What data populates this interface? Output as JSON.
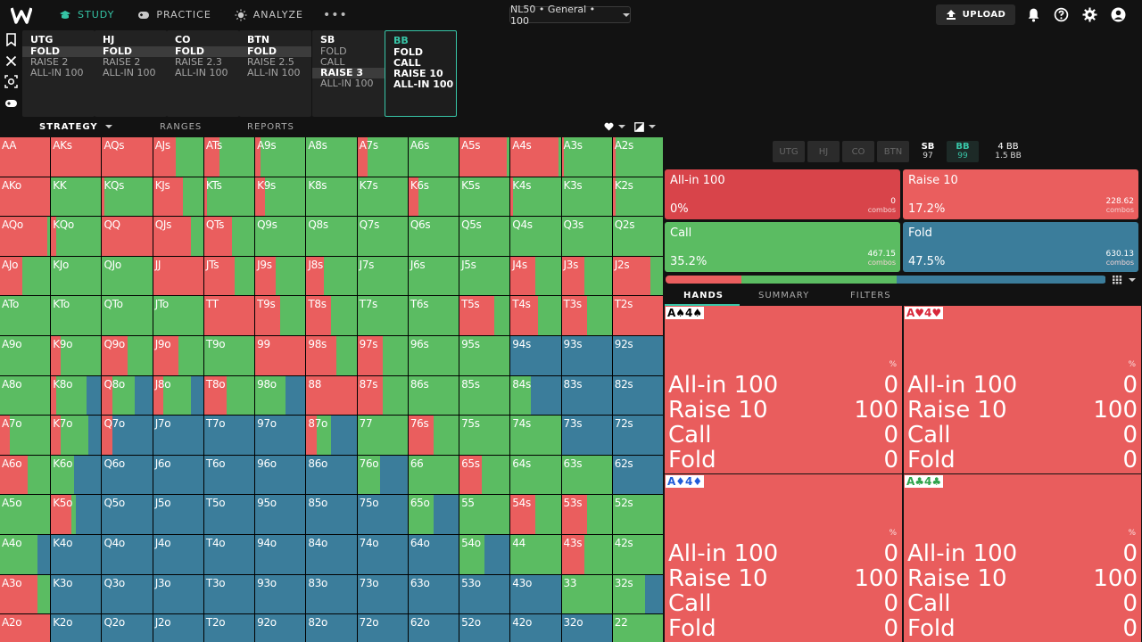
{
  "nav": {
    "study": "STUDY",
    "practice": "PRACTICE",
    "analyze": "ANALYZE",
    "more": "•••"
  },
  "game_select": "NL50 • General • 100",
  "upload": "UPLOAD",
  "positions": [
    {
      "name": "UTG",
      "actions": [
        "FOLD",
        "RAISE 2",
        "ALL-IN 100"
      ]
    },
    {
      "name": "HJ",
      "actions": [
        "FOLD",
        "RAISE 2",
        "ALL-IN 100"
      ]
    },
    {
      "name": "CO",
      "actions": [
        "FOLD",
        "RAISE 2.3",
        "ALL-IN 100"
      ]
    },
    {
      "name": "BTN",
      "actions": [
        "FOLD",
        "RAISE 2.5",
        "ALL-IN 100"
      ]
    },
    {
      "name": "SB",
      "actions": [
        "FOLD",
        "CALL",
        "RAISE 3",
        "ALL-IN 100"
      ]
    },
    {
      "name": "BB",
      "actions": [
        "FOLD",
        "CALL",
        "RAISE 10",
        "ALL-IN 100"
      ]
    }
  ],
  "subtabs": {
    "strategy": "STRATEGY",
    "ranges": "RANGES",
    "reports": "REPORTS"
  },
  "colors": {
    "raise": "#ea5e5e",
    "allin": "#d8444a",
    "call": "#5bbc62",
    "fold": "#3b7d9b"
  },
  "grid": [
    [
      "AA",
      "AKs",
      "AQs",
      "AJs",
      "ATs",
      "A9s",
      "A8s",
      "A7s",
      "A6s",
      "A5s",
      "A4s",
      "A3s",
      "A2s"
    ],
    [
      "AKo",
      "KK",
      "KQs",
      "KJs",
      "KTs",
      "K9s",
      "K8s",
      "K7s",
      "K6s",
      "K5s",
      "K4s",
      "K3s",
      "K2s"
    ],
    [
      "AQo",
      "KQo",
      "QQ",
      "QJs",
      "QTs",
      "Q9s",
      "Q8s",
      "Q7s",
      "Q6s",
      "Q5s",
      "Q4s",
      "Q3s",
      "Q2s"
    ],
    [
      "AJo",
      "KJo",
      "QJo",
      "JJ",
      "JTs",
      "J9s",
      "J8s",
      "J7s",
      "J6s",
      "J5s",
      "J4s",
      "J3s",
      "J2s"
    ],
    [
      "ATo",
      "KTo",
      "QTo",
      "JTo",
      "TT",
      "T9s",
      "T8s",
      "T7s",
      "T6s",
      "T5s",
      "T4s",
      "T3s",
      "T2s"
    ],
    [
      "A9o",
      "K9o",
      "Q9o",
      "J9o",
      "T9o",
      "99",
      "98s",
      "97s",
      "96s",
      "95s",
      "94s",
      "93s",
      "92s"
    ],
    [
      "A8o",
      "K8o",
      "Q8o",
      "J8o",
      "T8o",
      "98o",
      "88",
      "87s",
      "86s",
      "85s",
      "84s",
      "83s",
      "82s"
    ],
    [
      "A7o",
      "K7o",
      "Q7o",
      "J7o",
      "T7o",
      "97o",
      "87o",
      "77",
      "76s",
      "75s",
      "74s",
      "73s",
      "72s"
    ],
    [
      "A6o",
      "K6o",
      "Q6o",
      "J6o",
      "T6o",
      "96o",
      "86o",
      "76o",
      "66",
      "65s",
      "64s",
      "63s",
      "62s"
    ],
    [
      "A5o",
      "K5o",
      "Q5o",
      "J5o",
      "T5o",
      "95o",
      "85o",
      "75o",
      "65o",
      "55",
      "54s",
      "53s",
      "52s"
    ],
    [
      "A4o",
      "K4o",
      "Q4o",
      "J4o",
      "T4o",
      "94o",
      "84o",
      "74o",
      "64o",
      "54o",
      "44",
      "43s",
      "42s"
    ],
    [
      "A3o",
      "K3o",
      "Q3o",
      "J3o",
      "T3o",
      "93o",
      "83o",
      "73o",
      "63o",
      "53o",
      "43o",
      "33",
      "32s"
    ],
    [
      "A2o",
      "K2o",
      "Q2o",
      "J2o",
      "T2o",
      "92o",
      "82o",
      "72o",
      "62o",
      "52o",
      "42o",
      "32o",
      "22"
    ]
  ],
  "freq": [
    [
      [
        1,
        0,
        0
      ],
      [
        1,
        0,
        0
      ],
      [
        1,
        0,
        0
      ],
      [
        0.45,
        0.55,
        0
      ],
      [
        0.3,
        0.7,
        0
      ],
      [
        0.1,
        0.9,
        0
      ],
      [
        0,
        1,
        0
      ],
      [
        0.2,
        0.8,
        0
      ],
      [
        0,
        1,
        0
      ],
      [
        0.95,
        0.05,
        0
      ],
      [
        0.95,
        0.05,
        0
      ],
      [
        0.05,
        0.95,
        0
      ],
      [
        0.05,
        0.95,
        0
      ]
    ],
    [
      [
        1,
        0,
        0
      ],
      [
        0,
        1,
        0
      ],
      [
        0.05,
        0.95,
        0
      ],
      [
        0.6,
        0.4,
        0
      ],
      [
        0.05,
        0.95,
        0
      ],
      [
        0.2,
        0.8,
        0
      ],
      [
        0,
        1,
        0
      ],
      [
        0,
        1,
        0
      ],
      [
        0.2,
        0.8,
        0
      ],
      [
        0,
        1,
        0
      ],
      [
        0.05,
        0.95,
        0
      ],
      [
        0,
        1,
        0
      ],
      [
        0.05,
        0.95,
        0
      ]
    ],
    [
      [
        0.95,
        0.05,
        0
      ],
      [
        0.1,
        0.9,
        0
      ],
      [
        1,
        0,
        0
      ],
      [
        0.75,
        0.25,
        0
      ],
      [
        0.55,
        0.45,
        0
      ],
      [
        0,
        1,
        0
      ],
      [
        0,
        1,
        0
      ],
      [
        0,
        1,
        0
      ],
      [
        0,
        1,
        0
      ],
      [
        0,
        1,
        0
      ],
      [
        0,
        1,
        0
      ],
      [
        0,
        1,
        0
      ],
      [
        0,
        1,
        0
      ]
    ],
    [
      [
        0.45,
        0.55,
        0
      ],
      [
        0,
        1,
        0
      ],
      [
        0,
        1,
        0
      ],
      [
        1,
        0,
        0
      ],
      [
        0.6,
        0.4,
        0
      ],
      [
        0.4,
        0.6,
        0
      ],
      [
        0.35,
        0.65,
        0
      ],
      [
        0,
        1,
        0
      ],
      [
        0,
        1,
        0
      ],
      [
        0,
        1,
        0
      ],
      [
        0.5,
        0.5,
        0
      ],
      [
        0.45,
        0.55,
        0
      ],
      [
        0.75,
        0.25,
        0
      ]
    ],
    [
      [
        0,
        1,
        0
      ],
      [
        0,
        1,
        0
      ],
      [
        0,
        1,
        0
      ],
      [
        0,
        1,
        0
      ],
      [
        1,
        0,
        0
      ],
      [
        0.5,
        0.5,
        0
      ],
      [
        0.5,
        0.5,
        0
      ],
      [
        0,
        1,
        0
      ],
      [
        0,
        1,
        0
      ],
      [
        0.7,
        0.3,
        0
      ],
      [
        0.55,
        0.45,
        0
      ],
      [
        0.5,
        0.5,
        0
      ],
      [
        1,
        0,
        0
      ]
    ],
    [
      [
        0,
        1,
        0
      ],
      [
        0.2,
        0.8,
        0
      ],
      [
        0.5,
        0.5,
        0
      ],
      [
        0.5,
        0.5,
        0
      ],
      [
        0,
        1,
        0
      ],
      [
        1,
        0,
        0
      ],
      [
        0.6,
        0.4,
        0
      ],
      [
        0.5,
        0.5,
        0
      ],
      [
        0,
        1,
        0
      ],
      [
        0,
        1,
        0
      ],
      [
        0,
        0,
        1
      ],
      [
        0,
        0,
        1
      ],
      [
        0,
        0,
        1
      ]
    ],
    [
      [
        0,
        1,
        0
      ],
      [
        0.1,
        0.6,
        0.3
      ],
      [
        0.2,
        0.45,
        0.35
      ],
      [
        0.2,
        0.55,
        0.25
      ],
      [
        0.45,
        0.55,
        0
      ],
      [
        0,
        0.6,
        0.4
      ],
      [
        1,
        0,
        0
      ],
      [
        0.5,
        0.5,
        0
      ],
      [
        0,
        1,
        0
      ],
      [
        0,
        1,
        0
      ],
      [
        0,
        0.4,
        0.6
      ],
      [
        0,
        0,
        1
      ],
      [
        0,
        0,
        1
      ]
    ],
    [
      [
        0.2,
        0.8,
        0
      ],
      [
        0.2,
        0.55,
        0.25
      ],
      [
        0.2,
        0,
        0.8
      ],
      [
        0,
        0,
        1
      ],
      [
        0,
        0,
        1
      ],
      [
        0,
        0,
        1
      ],
      [
        0.2,
        0.3,
        0.5
      ],
      [
        0,
        1,
        0
      ],
      [
        0.5,
        0.5,
        0
      ],
      [
        0,
        1,
        0
      ],
      [
        0,
        1,
        0
      ],
      [
        0,
        0,
        1
      ],
      [
        0,
        0,
        1
      ]
    ],
    [
      [
        0.55,
        0.45,
        0
      ],
      [
        0,
        0.45,
        0.55
      ],
      [
        0,
        0,
        1
      ],
      [
        0,
        0,
        1
      ],
      [
        0,
        0,
        1
      ],
      [
        0,
        0,
        1
      ],
      [
        0,
        0,
        1
      ],
      [
        0,
        0.45,
        0.55
      ],
      [
        0,
        1,
        0
      ],
      [
        0.45,
        0.55,
        0
      ],
      [
        0,
        1,
        0
      ],
      [
        0,
        1,
        0
      ],
      [
        0,
        0,
        1
      ]
    ],
    [
      [
        0,
        1,
        0
      ],
      [
        0.4,
        0.1,
        0.5
      ],
      [
        0,
        0,
        1
      ],
      [
        0,
        0,
        1
      ],
      [
        0,
        0,
        1
      ],
      [
        0,
        0,
        1
      ],
      [
        0,
        0,
        1
      ],
      [
        0,
        0,
        1
      ],
      [
        0,
        0.5,
        0.5
      ],
      [
        0,
        1,
        0
      ],
      [
        0.5,
        0.5,
        0
      ],
      [
        0.5,
        0.5,
        0
      ],
      [
        0,
        1,
        0
      ]
    ],
    [
      [
        0,
        0.75,
        0.25
      ],
      [
        0,
        0,
        1
      ],
      [
        0,
        0,
        1
      ],
      [
        0,
        0,
        1
      ],
      [
        0,
        0,
        1
      ],
      [
        0,
        0,
        1
      ],
      [
        0,
        0,
        1
      ],
      [
        0,
        0,
        1
      ],
      [
        0,
        0,
        1
      ],
      [
        0,
        0.5,
        0.5
      ],
      [
        0,
        1,
        0
      ],
      [
        0.45,
        0.55,
        0
      ],
      [
        0,
        1,
        0
      ]
    ],
    [
      [
        0.75,
        0.25,
        0
      ],
      [
        0,
        0,
        1
      ],
      [
        0,
        0,
        1
      ],
      [
        0,
        0,
        1
      ],
      [
        0,
        0,
        1
      ],
      [
        0,
        0,
        1
      ],
      [
        0,
        0,
        1
      ],
      [
        0,
        0,
        1
      ],
      [
        0,
        0,
        1
      ],
      [
        0,
        0,
        1
      ],
      [
        0,
        0,
        1
      ],
      [
        0,
        1,
        0
      ],
      [
        0,
        0.65,
        0.35
      ]
    ],
    [
      [
        1,
        0,
        0
      ],
      [
        0,
        0,
        1
      ],
      [
        0,
        0,
        1
      ],
      [
        0,
        0,
        1
      ],
      [
        0,
        0,
        1
      ],
      [
        0,
        0,
        1
      ],
      [
        0,
        0,
        1
      ],
      [
        0,
        0,
        1
      ],
      [
        0,
        0,
        1
      ],
      [
        0,
        0,
        1
      ],
      [
        0,
        0,
        1
      ],
      [
        0,
        0,
        1
      ],
      [
        0,
        1,
        0
      ]
    ]
  ],
  "seat_tabs": [
    {
      "label": "UTG",
      "sub": ""
    },
    {
      "label": "HJ",
      "sub": ""
    },
    {
      "label": "CO",
      "sub": ""
    },
    {
      "label": "BTN",
      "sub": ""
    },
    {
      "label": "SB",
      "sub": "97"
    },
    {
      "label": "BB",
      "sub": "99"
    },
    {
      "label": "4 BB",
      "sub": "1.5 BB"
    }
  ],
  "actions": [
    {
      "name": "All-in 100",
      "pct": "0%",
      "combos": "0",
      "unit": "combos"
    },
    {
      "name": "Raise 10",
      "pct": "17.2%",
      "combos": "228.62",
      "unit": "combos"
    },
    {
      "name": "Call",
      "pct": "35.2%",
      "combos": "467.15",
      "unit": "combos"
    },
    {
      "name": "Fold",
      "pct": "47.5%",
      "combos": "630.13",
      "unit": "combos"
    }
  ],
  "freq_bar": [
    0,
    17.2,
    35.2,
    47.5
  ],
  "hand_tabs": {
    "hands": "HANDS",
    "summary": "SUMMARY",
    "filters": "FILTERS"
  },
  "hands": [
    {
      "cards": "A♠4♠",
      "suit_color": "#000000",
      "pct_label": "%",
      "rows": [
        [
          "All-in 100",
          "0"
        ],
        [
          "Raise 10",
          "100"
        ],
        [
          "Call",
          "0"
        ],
        [
          "Fold",
          "0"
        ]
      ]
    },
    {
      "cards": "A♥4♥",
      "suit_color": "#d8283a",
      "pct_label": "%",
      "rows": [
        [
          "All-in 100",
          "0"
        ],
        [
          "Raise 10",
          "100"
        ],
        [
          "Call",
          "0"
        ],
        [
          "Fold",
          "0"
        ]
      ]
    },
    {
      "cards": "A♦4♦",
      "suit_color": "#1f5bd8",
      "pct_label": "%",
      "rows": [
        [
          "All-in 100",
          "0"
        ],
        [
          "Raise 10",
          "100"
        ],
        [
          "Call",
          "0"
        ],
        [
          "Fold",
          "0"
        ]
      ]
    },
    {
      "cards": "A♣4♣",
      "suit_color": "#2ea34a",
      "pct_label": "%",
      "rows": [
        [
          "All-in 100",
          "0"
        ],
        [
          "Raise 10",
          "100"
        ],
        [
          "Call",
          "0"
        ],
        [
          "Fold",
          "0"
        ]
      ]
    }
  ]
}
